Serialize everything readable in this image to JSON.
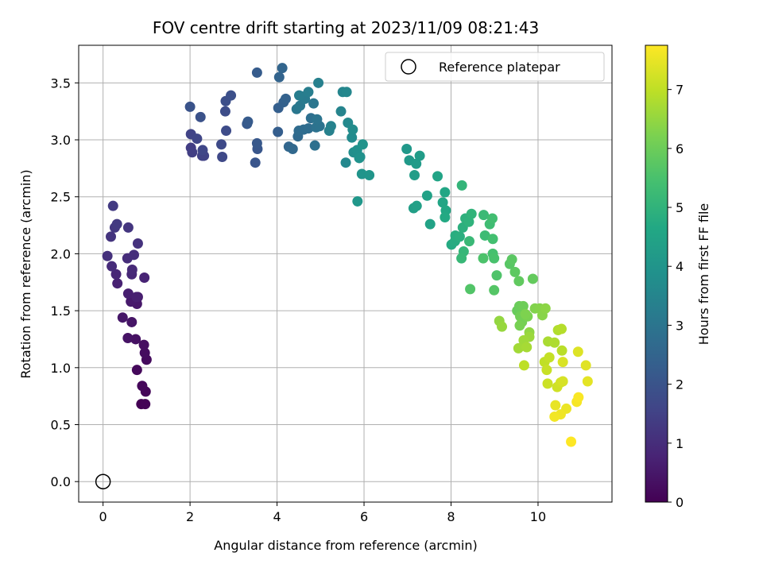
{
  "chart_data": {
    "type": "scatter",
    "title": "FOV centre drift starting at 2023/11/09 08:21:43",
    "xlabel": "Angular distance from reference (arcmin)",
    "ylabel": "Rotation from reference (arcmin)",
    "xlim": [
      -0.56,
      11.7
    ],
    "ylim": [
      -0.18,
      3.83
    ],
    "xticks": [
      0,
      2,
      4,
      6,
      8,
      10
    ],
    "yticks": [
      0.0,
      0.5,
      1.0,
      1.5,
      2.0,
      2.5,
      3.0,
      3.5
    ],
    "xtick_labels": [
      "0",
      "2",
      "4",
      "6",
      "8",
      "10"
    ],
    "ytick_labels": [
      "0.0",
      "0.5",
      "1.0",
      "1.5",
      "2.0",
      "2.5",
      "3.0",
      "3.5"
    ],
    "grid": true,
    "legend": {
      "position": "top-right",
      "entries": [
        "Reference platepar"
      ]
    },
    "colormap": "viridis",
    "colorbar": {
      "label": "Hours from first FF file",
      "range": [
        0,
        7.75
      ],
      "ticks": [
        0,
        1,
        2,
        3,
        4,
        5,
        6,
        7
      ],
      "tick_labels": [
        "0",
        "1",
        "2",
        "3",
        "4",
        "5",
        "6",
        "7"
      ]
    },
    "reference_point": {
      "name": "Reference platepar",
      "x": 0,
      "y": 0
    },
    "series": [
      {
        "columns": [
          "x",
          "y",
          "hours"
        ],
        "points": [
          [
            0.88,
            0.68
          ],
          [
            0.97,
            0.68
          ],
          [
            0.98,
            0.79
          ],
          [
            0.9,
            0.84
          ],
          [
            0.78,
            0.98
          ],
          [
            1.0,
            1.07
          ],
          [
            0.96,
            1.13
          ],
          [
            0.94,
            1.2
          ],
          [
            0.75,
            1.25
          ],
          [
            0.57,
            1.26
          ],
          [
            0.66,
            1.4
          ],
          [
            0.45,
            1.44
          ],
          [
            0.78,
            1.56
          ],
          [
            0.64,
            1.58
          ],
          [
            0.8,
            1.62
          ],
          [
            0.58,
            1.65
          ],
          [
            0.77,
            1.62
          ],
          [
            0.33,
            1.74
          ],
          [
            0.95,
            1.79
          ],
          [
            0.3,
            1.82
          ],
          [
            0.66,
            1.82
          ],
          [
            0.67,
            1.86
          ],
          [
            0.2,
            1.89
          ],
          [
            0.56,
            1.96
          ],
          [
            0.71,
            1.99
          ],
          [
            0.1,
            1.98
          ],
          [
            0.8,
            2.09
          ],
          [
            0.18,
            2.15
          ],
          [
            0.58,
            2.23
          ],
          [
            0.27,
            2.23
          ],
          [
            0.32,
            2.26
          ],
          [
            0.23,
            2.42
          ],
          [
            2.02,
            2.93
          ],
          [
            2.05,
            2.89
          ],
          [
            2.28,
            2.86
          ],
          [
            2.32,
            2.86
          ],
          [
            2.02,
            3.05
          ],
          [
            2.16,
            3.01
          ],
          [
            2.29,
            2.91
          ],
          [
            2.74,
            2.85
          ],
          [
            2.72,
            2.96
          ],
          [
            2.83,
            3.08
          ],
          [
            2.81,
            3.25
          ],
          [
            2.82,
            3.34
          ],
          [
            2.94,
            3.39
          ],
          [
            2.24,
            3.2
          ],
          [
            2.0,
            3.29
          ],
          [
            3.5,
            2.8
          ],
          [
            3.55,
            2.92
          ],
          [
            3.54,
            2.97
          ],
          [
            3.31,
            3.14
          ],
          [
            3.33,
            3.16
          ],
          [
            3.54,
            3.59
          ],
          [
            4.02,
            3.07
          ],
          [
            4.03,
            3.28
          ],
          [
            4.15,
            3.33
          ],
          [
            4.2,
            3.36
          ],
          [
            4.05,
            3.55
          ],
          [
            4.12,
            3.63
          ],
          [
            4.27,
            2.94
          ],
          [
            4.36,
            2.92
          ],
          [
            4.48,
            3.03
          ],
          [
            4.5,
            3.08
          ],
          [
            4.61,
            3.09
          ],
          [
            4.72,
            3.1
          ],
          [
            4.78,
            3.19
          ],
          [
            4.87,
            2.95
          ],
          [
            4.9,
            3.11
          ],
          [
            4.98,
            3.12
          ],
          [
            4.92,
            3.18
          ],
          [
            4.84,
            3.32
          ],
          [
            4.45,
            3.27
          ],
          [
            4.53,
            3.3
          ],
          [
            4.58,
            3.38
          ],
          [
            4.64,
            3.36
          ],
          [
            4.51,
            3.39
          ],
          [
            4.72,
            3.42
          ],
          [
            4.95,
            3.5
          ],
          [
            5.2,
            3.08
          ],
          [
            5.24,
            3.12
          ],
          [
            5.47,
            3.25
          ],
          [
            5.51,
            3.42
          ],
          [
            5.6,
            3.42
          ],
          [
            5.58,
            2.8
          ],
          [
            5.63,
            3.15
          ],
          [
            5.72,
            3.02
          ],
          [
            5.74,
            3.09
          ],
          [
            5.76,
            2.89
          ],
          [
            5.91,
            2.85
          ],
          [
            5.84,
            2.91
          ],
          [
            5.89,
            2.84
          ],
          [
            5.97,
            2.96
          ],
          [
            5.95,
            2.7
          ],
          [
            6.12,
            2.69
          ],
          [
            5.85,
            2.46
          ],
          [
            6.98,
            2.92
          ],
          [
            7.04,
            2.82
          ],
          [
            7.2,
            2.79
          ],
          [
            7.28,
            2.86
          ],
          [
            7.16,
            2.69
          ],
          [
            7.14,
            2.4
          ],
          [
            7.21,
            2.42
          ],
          [
            7.45,
            2.51
          ],
          [
            7.52,
            2.26
          ],
          [
            7.69,
            2.68
          ],
          [
            7.81,
            2.45
          ],
          [
            7.86,
            2.54
          ],
          [
            7.88,
            2.38
          ],
          [
            7.86,
            2.32
          ],
          [
            8.01,
            2.08
          ],
          [
            8.09,
            2.11
          ],
          [
            8.1,
            2.16
          ],
          [
            8.2,
            2.15
          ],
          [
            8.27,
            2.23
          ],
          [
            8.33,
            2.31
          ],
          [
            8.41,
            2.28
          ],
          [
            8.47,
            2.35
          ],
          [
            8.25,
            2.6
          ],
          [
            8.29,
            2.02
          ],
          [
            8.24,
            1.96
          ],
          [
            8.42,
            2.11
          ],
          [
            8.75,
            2.34
          ],
          [
            8.78,
            2.16
          ],
          [
            8.89,
            2.26
          ],
          [
            8.95,
            2.31
          ],
          [
            8.96,
            2.13
          ],
          [
            8.96,
            2.0
          ],
          [
            8.99,
            1.96
          ],
          [
            8.74,
            1.96
          ],
          [
            9.05,
            1.81
          ],
          [
            8.44,
            1.69
          ],
          [
            8.99,
            1.68
          ],
          [
            9.35,
            1.91
          ],
          [
            9.4,
            1.95
          ],
          [
            9.47,
            1.84
          ],
          [
            9.56,
            1.76
          ],
          [
            9.88,
            1.78
          ],
          [
            9.52,
            1.5
          ],
          [
            9.57,
            1.54
          ],
          [
            9.66,
            1.54
          ],
          [
            9.59,
            1.45
          ],
          [
            9.63,
            1.4
          ],
          [
            9.58,
            1.37
          ],
          [
            9.76,
            1.45
          ],
          [
            9.71,
            1.47
          ],
          [
            9.93,
            1.52
          ],
          [
            10.04,
            1.52
          ],
          [
            10.1,
            1.46
          ],
          [
            10.17,
            1.52
          ],
          [
            9.8,
            1.31
          ],
          [
            9.11,
            1.41
          ],
          [
            9.17,
            1.36
          ],
          [
            9.8,
            1.27
          ],
          [
            9.67,
            1.24
          ],
          [
            9.55,
            1.17
          ],
          [
            9.74,
            1.18
          ],
          [
            10.23,
            1.23
          ],
          [
            10.38,
            1.22
          ],
          [
            10.46,
            1.33
          ],
          [
            10.54,
            1.34
          ],
          [
            10.55,
            1.15
          ],
          [
            9.68,
            1.02
          ],
          [
            10.15,
            1.05
          ],
          [
            10.26,
            1.09
          ],
          [
            10.2,
            0.98
          ],
          [
            10.22,
            0.86
          ],
          [
            10.44,
            0.83
          ],
          [
            10.52,
            0.87
          ],
          [
            10.57,
            0.88
          ],
          [
            10.57,
            1.05
          ],
          [
            10.92,
            1.14
          ],
          [
            11.1,
            1.02
          ],
          [
            11.14,
            0.88
          ],
          [
            10.4,
            0.67
          ],
          [
            10.65,
            0.64
          ],
          [
            10.52,
            0.59
          ],
          [
            10.38,
            0.57
          ],
          [
            10.89,
            0.7
          ],
          [
            10.93,
            0.74
          ],
          [
            10.76,
            0.35
          ]
        ]
      }
    ]
  }
}
